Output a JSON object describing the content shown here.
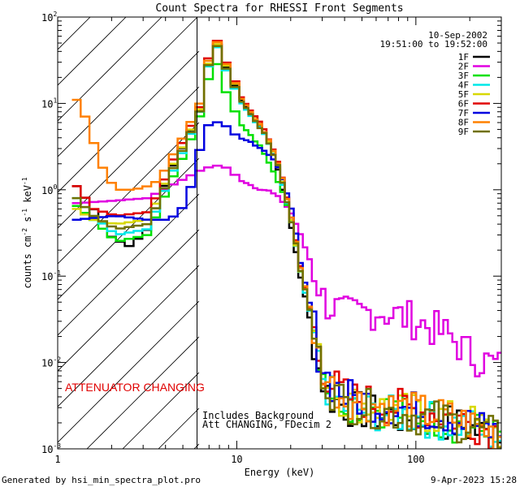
{
  "chart_data": {
    "type": "line",
    "title": "Count Spectra for RHESSI Front Segments",
    "xlabel": "Energy (keV)",
    "ylabel": "counts cm",
    "ylabel_parts": {
      "sup1": "-2",
      "mid": " s",
      "sup2": "-1",
      "unit": " keV",
      "sup3": "-1"
    },
    "xscale": "log",
    "yscale": "log",
    "xlim": [
      1,
      300
    ],
    "ylim": [
      0.001,
      100
    ],
    "x_ticks": [
      {
        "v": 1,
        "label": "1"
      },
      {
        "v": 10,
        "label": "10"
      },
      {
        "v": 100,
        "label": "100"
      }
    ],
    "y_ticks": [
      {
        "v": 0.001,
        "base": "10",
        "exp": "-3"
      },
      {
        "v": 0.01,
        "base": "10",
        "exp": "-2"
      },
      {
        "v": 0.1,
        "base": "10",
        "exp": "-1"
      },
      {
        "v": 1,
        "base": "10",
        "exp": "0"
      },
      {
        "v": 10,
        "base": "10",
        "exp": "1"
      },
      {
        "v": 100,
        "base": "10",
        "exp": "2"
      }
    ],
    "date": "10-Sep-2002",
    "time_range": "19:51:00 to 19:52:00",
    "attenuator_edge_keV": 6,
    "annotations": {
      "attenuator": "ATTENUATOR CHANGING",
      "background": "Includes Background",
      "att_state": "Att CHANGING, FDecim 2"
    },
    "footer_left": "Generated by hsi_min_spectra_plot.pro",
    "footer_right": "9-Apr-2023 15:28",
    "series": [
      {
        "name": "1F",
        "color": "#000000"
      },
      {
        "name": "2F",
        "color": "#e000e0"
      },
      {
        "name": "3F",
        "color": "#00e000"
      },
      {
        "name": "4F",
        "color": "#00e8e8"
      },
      {
        "name": "5F",
        "color": "#d8d800"
      },
      {
        "name": "6F",
        "color": "#e00000"
      },
      {
        "name": "7F",
        "color": "#0000e0"
      },
      {
        "name": "8F",
        "color": "#ff8000"
      },
      {
        "name": "9F",
        "color": "#707000"
      }
    ],
    "series_points": {
      "1F": [
        [
          1.2,
          1.1
        ],
        [
          1.5,
          0.6
        ],
        [
          1.9,
          0.28
        ],
        [
          2.4,
          0.22
        ],
        [
          3.0,
          0.35
        ],
        [
          3.5,
          0.8
        ],
        [
          4.0,
          1.6
        ],
        [
          5.0,
          4
        ],
        [
          6.0,
          9
        ],
        [
          6.5,
          25
        ],
        [
          7.0,
          55
        ],
        [
          7.5,
          45
        ],
        [
          8.5,
          22
        ],
        [
          10,
          12
        ],
        [
          12,
          7
        ],
        [
          14,
          4.5
        ],
        [
          16,
          2.2
        ],
        [
          18,
          0.8
        ],
        [
          20,
          0.3
        ],
        [
          22,
          0.1
        ],
        [
          25,
          0.03
        ],
        [
          28,
          0.008
        ],
        [
          32,
          0.004
        ],
        [
          40,
          0.003
        ],
        [
          60,
          0.0025
        ],
        [
          100,
          0.0022
        ],
        [
          150,
          0.002
        ],
        [
          200,
          0.0017
        ],
        [
          300,
          0.0012
        ]
      ],
      "2F": [
        [
          1.2,
          0.7
        ],
        [
          2.0,
          0.75
        ],
        [
          3.0,
          0.8
        ],
        [
          4.0,
          1.1
        ],
        [
          5.0,
          1.4
        ],
        [
          6.0,
          1.7
        ],
        [
          7.0,
          1.9
        ],
        [
          8.0,
          1.9
        ],
        [
          10,
          1.3
        ],
        [
          12,
          1.1
        ],
        [
          15,
          0.95
        ],
        [
          18,
          0.7
        ],
        [
          20,
          0.5
        ],
        [
          22,
          0.3
        ],
        [
          25,
          0.15
        ],
        [
          30,
          0.05
        ],
        [
          40,
          0.035
        ],
        [
          60,
          0.04
        ],
        [
          100,
          0.03
        ],
        [
          150,
          0.02
        ],
        [
          200,
          0.012
        ],
        [
          300,
          0.0085
        ]
      ],
      "3F": [
        [
          1.2,
          0.65
        ],
        [
          1.5,
          0.45
        ],
        [
          2.0,
          0.25
        ],
        [
          3.0,
          0.3
        ],
        [
          3.5,
          0.6
        ],
        [
          4.0,
          1.2
        ],
        [
          5.0,
          3
        ],
        [
          6.0,
          8
        ],
        [
          6.6,
          20
        ],
        [
          7.0,
          40
        ],
        [
          7.5,
          25
        ],
        [
          8.5,
          11
        ],
        [
          10,
          6
        ],
        [
          12,
          4
        ],
        [
          14,
          2.6
        ],
        [
          16,
          1.5
        ],
        [
          18,
          0.8
        ],
        [
          20,
          0.35
        ],
        [
          22,
          0.13
        ],
        [
          25,
          0.04
        ],
        [
          28,
          0.012
        ],
        [
          32,
          0.005
        ],
        [
          40,
          0.0035
        ],
        [
          60,
          0.003
        ],
        [
          100,
          0.0025
        ],
        [
          150,
          0.002
        ],
        [
          200,
          0.0017
        ],
        [
          300,
          0.0013
        ]
      ],
      "4F": [
        [
          1.2,
          0.8
        ],
        [
          1.5,
          0.5
        ],
        [
          2.0,
          0.3
        ],
        [
          3.0,
          0.35
        ],
        [
          3.5,
          0.7
        ],
        [
          4.0,
          1.4
        ],
        [
          5.0,
          3.5
        ],
        [
          6.0,
          9
        ],
        [
          6.5,
          24
        ],
        [
          7.0,
          52
        ],
        [
          7.5,
          42
        ],
        [
          8.5,
          20
        ],
        [
          10,
          11
        ],
        [
          12,
          6.5
        ],
        [
          14,
          4.2
        ],
        [
          16,
          2.3
        ],
        [
          18,
          0.9
        ],
        [
          20,
          0.35
        ],
        [
          22,
          0.11
        ],
        [
          25,
          0.035
        ],
        [
          28,
          0.009
        ],
        [
          32,
          0.0045
        ],
        [
          40,
          0.003
        ],
        [
          60,
          0.0026
        ],
        [
          100,
          0.0023
        ],
        [
          150,
          0.002
        ],
        [
          200,
          0.0018
        ],
        [
          300,
          0.0013
        ]
      ],
      "5F": [
        [
          1.2,
          0.6
        ],
        [
          1.5,
          0.45
        ],
        [
          2.0,
          0.4
        ],
        [
          3.0,
          0.45
        ],
        [
          3.5,
          0.85
        ],
        [
          4.0,
          1.7
        ],
        [
          5.0,
          4
        ],
        [
          6.0,
          9.5
        ],
        [
          6.5,
          26
        ],
        [
          7.0,
          55
        ],
        [
          7.5,
          46
        ],
        [
          8.5,
          23
        ],
        [
          10,
          12.5
        ],
        [
          12,
          7.2
        ],
        [
          14,
          4.6
        ],
        [
          16,
          2.4
        ],
        [
          18,
          1.0
        ],
        [
          20,
          0.38
        ],
        [
          22,
          0.12
        ],
        [
          25,
          0.04
        ],
        [
          28,
          0.01
        ],
        [
          32,
          0.005
        ],
        [
          40,
          0.0035
        ],
        [
          60,
          0.003
        ],
        [
          100,
          0.0026
        ],
        [
          150,
          0.0022
        ],
        [
          200,
          0.002
        ],
        [
          300,
          0.0015
        ]
      ],
      "6F": [
        [
          1.2,
          1.1
        ],
        [
          1.5,
          0.6
        ],
        [
          2.0,
          0.5
        ],
        [
          3.0,
          0.55
        ],
        [
          3.5,
          0.95
        ],
        [
          4.0,
          1.9
        ],
        [
          5.0,
          4.5
        ],
        [
          6.0,
          10
        ],
        [
          6.5,
          30
        ],
        [
          7.0,
          62
        ],
        [
          7.5,
          50
        ],
        [
          8.5,
          25
        ],
        [
          10,
          13
        ],
        [
          12,
          7.5
        ],
        [
          14,
          4.8
        ],
        [
          16,
          2.6
        ],
        [
          18,
          1.1
        ],
        [
          20,
          0.4
        ],
        [
          22,
          0.13
        ],
        [
          25,
          0.04
        ],
        [
          28,
          0.011
        ],
        [
          32,
          0.006
        ],
        [
          40,
          0.004
        ],
        [
          60,
          0.0033
        ],
        [
          100,
          0.0028
        ],
        [
          150,
          0.0024
        ],
        [
          200,
          0.002
        ],
        [
          300,
          0.0015
        ]
      ],
      "7F": [
        [
          1.2,
          0.45
        ],
        [
          2.0,
          0.5
        ],
        [
          3.0,
          0.45
        ],
        [
          4.0,
          0.45
        ],
        [
          5.0,
          0.7
        ],
        [
          5.5,
          1.7
        ],
        [
          6.0,
          3.5
        ],
        [
          6.5,
          5.5
        ],
        [
          7.0,
          6.2
        ],
        [
          8.0,
          5.8
        ],
        [
          9.0,
          4.5
        ],
        [
          10,
          4
        ],
        [
          12,
          3.5
        ],
        [
          14,
          2.8
        ],
        [
          16,
          2.0
        ],
        [
          18,
          1.2
        ],
        [
          20,
          0.5
        ],
        [
          22,
          0.14
        ],
        [
          25,
          0.045
        ],
        [
          28,
          0.012
        ],
        [
          32,
          0.006
        ],
        [
          40,
          0.004
        ],
        [
          60,
          0.0033
        ],
        [
          100,
          0.0028
        ],
        [
          150,
          0.0024
        ],
        [
          200,
          0.0019
        ],
        [
          300,
          0.0014
        ]
      ],
      "8F": [
        [
          1.2,
          11
        ],
        [
          1.4,
          6
        ],
        [
          1.6,
          2.2
        ],
        [
          1.8,
          1.4
        ],
        [
          2.0,
          1.0
        ],
        [
          2.5,
          1.0
        ],
        [
          3.0,
          1.1
        ],
        [
          3.5,
          1.3
        ],
        [
          4.0,
          2.2
        ],
        [
          5.0,
          5
        ],
        [
          6.0,
          11
        ],
        [
          6.5,
          28
        ],
        [
          7.0,
          60
        ],
        [
          7.5,
          48
        ],
        [
          8.5,
          24
        ],
        [
          10,
          12.5
        ],
        [
          12,
          7.2
        ],
        [
          14,
          4.6
        ],
        [
          16,
          2.5
        ],
        [
          18,
          1.05
        ],
        [
          20,
          0.4
        ],
        [
          22,
          0.13
        ],
        [
          25,
          0.04
        ],
        [
          28,
          0.011
        ],
        [
          32,
          0.0055
        ],
        [
          40,
          0.0038
        ],
        [
          60,
          0.0032
        ],
        [
          100,
          0.0027
        ],
        [
          150,
          0.0023
        ],
        [
          200,
          0.0019
        ],
        [
          300,
          0.0014
        ]
      ],
      "9F": [
        [
          1.2,
          0.8
        ],
        [
          1.5,
          0.5
        ],
        [
          2.0,
          0.35
        ],
        [
          3.0,
          0.4
        ],
        [
          3.5,
          0.75
        ],
        [
          4.0,
          1.5
        ],
        [
          5.0,
          3.7
        ],
        [
          6.0,
          9
        ],
        [
          6.5,
          25
        ],
        [
          7.0,
          52
        ],
        [
          7.5,
          44
        ],
        [
          8.5,
          21
        ],
        [
          10,
          11.5
        ],
        [
          12,
          6.8
        ],
        [
          14,
          4.4
        ],
        [
          16,
          2.3
        ],
        [
          18,
          0.95
        ],
        [
          20,
          0.36
        ],
        [
          22,
          0.12
        ],
        [
          25,
          0.037
        ],
        [
          28,
          0.01
        ],
        [
          32,
          0.005
        ],
        [
          40,
          0.0033
        ],
        [
          60,
          0.0028
        ],
        [
          100,
          0.0024
        ],
        [
          150,
          0.0021
        ],
        [
          200,
          0.0018
        ],
        [
          300,
          0.0013
        ]
      ]
    }
  }
}
